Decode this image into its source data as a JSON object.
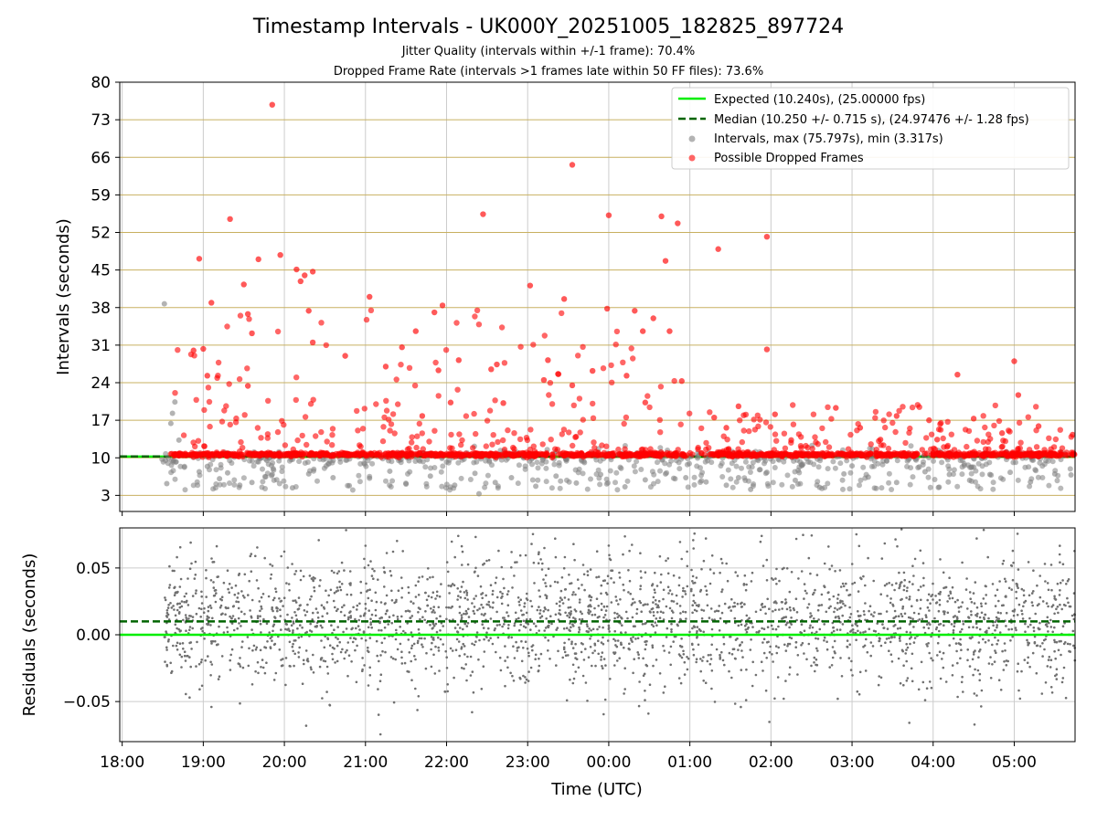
{
  "chart_data": [
    {
      "type": "scatter",
      "title": "Timestamp Intervals - UK000Y_20251005_182825_897724",
      "subtitle_1": "Jitter Quality (intervals within +/-1 frame): 70.4%",
      "subtitle_2": "Dropped Frame Rate (intervals >1 frames late within 50 FF files): 73.6%",
      "ylabel": "Intervals (seconds)",
      "ylim": [
        0,
        80
      ],
      "yticks": [
        3,
        10,
        17,
        24,
        31,
        38,
        45,
        52,
        59,
        66,
        73,
        80
      ],
      "ytick_labels": [
        "3",
        "10",
        "17",
        "24",
        "31",
        "38",
        "45",
        "52",
        "59",
        "66",
        "73",
        "80"
      ],
      "xlim_hours": [
        17.97,
        29.75
      ],
      "data_start_hour": 18.47,
      "data_end_hour": 29.75,
      "grid": true,
      "legend_position": "top-right",
      "legend": {
        "expected": "Expected (10.240s), (25.00000 fps)",
        "median": "Median (10.250 +/- 0.715 s), (24.97476 +/- 1.28 fps)",
        "intervals": "Intervals, max (75.797s), min (3.317s)",
        "dropped": "Possible Dropped Frames"
      },
      "expected_value": 10.24,
      "median_value": 10.25,
      "series": [
        {
          "name": "Intervals",
          "color": "#808080",
          "points": [
            [
              18.52,
              38.7
            ],
            [
              18.6,
              16.4
            ],
            [
              18.65,
              20.4
            ],
            [
              18.62,
              18.3
            ],
            [
              18.7,
              13.3
            ],
            [
              18.55,
              5.2
            ],
            [
              18.95,
              7.4
            ],
            [
              19.2,
              6.1
            ],
            [
              19.3,
              7.2
            ],
            [
              19.45,
              4.9
            ],
            [
              19.6,
              5.4
            ],
            [
              19.85,
              6.9
            ],
            [
              20.1,
              4.4
            ],
            [
              20.3,
              7.0
            ],
            [
              20.6,
              6.3
            ],
            [
              20.8,
              4.8
            ],
            [
              21.05,
              6.2
            ],
            [
              21.3,
              7.5
            ],
            [
              21.5,
              5.1
            ],
            [
              21.8,
              6.6
            ],
            [
              22.1,
              4.9
            ],
            [
              22.35,
              7.1
            ],
            [
              22.6,
              5.4
            ],
            [
              22.8,
              6.3
            ],
            [
              23.1,
              4.7
            ],
            [
              23.35,
              6.6
            ],
            [
              23.6,
              5.3
            ],
            [
              23.9,
              6.9
            ],
            [
              24.2,
              4.6
            ],
            [
              24.45,
              5.9
            ],
            [
              24.7,
              7.0
            ],
            [
              24.95,
              6.3
            ],
            [
              25.2,
              5.5
            ],
            [
              25.45,
              4.9
            ],
            [
              25.6,
              6.3
            ],
            [
              25.75,
              4.1
            ],
            [
              25.95,
              7.3
            ],
            [
              26.3,
              5.8
            ],
            [
              26.6,
              4.5
            ],
            [
              26.9,
              7.0
            ],
            [
              27.2,
              6.4
            ],
            [
              27.55,
              5.4
            ],
            [
              27.9,
              7.4
            ],
            [
              28.2,
              6.9
            ],
            [
              28.45,
              5.8
            ],
            [
              28.7,
              6.9
            ],
            [
              28.95,
              7.3
            ],
            [
              29.2,
              5.5
            ],
            [
              29.5,
              7.0
            ],
            [
              29.7,
              6.8
            ],
            [
              22.4,
              3.3
            ],
            [
              19.05,
              8.4
            ],
            [
              20.55,
              8.9
            ],
            [
              23.7,
              9.1
            ],
            [
              27.0,
              8.5
            ]
          ]
        },
        {
          "name": "Possible Dropped Frames",
          "color": "#ff0000",
          "points": [
            [
              19.85,
              75.8
            ],
            [
              23.55,
              64.6
            ],
            [
              22.45,
              55.4
            ],
            [
              24.0,
              55.2
            ],
            [
              24.65,
              55.0
            ],
            [
              19.33,
              54.5
            ],
            [
              24.85,
              53.7
            ],
            [
              25.95,
              51.2
            ],
            [
              25.35,
              48.9
            ],
            [
              19.95,
              47.8
            ],
            [
              18.95,
              47.1
            ],
            [
              19.68,
              47.0
            ],
            [
              24.7,
              46.7
            ],
            [
              20.15,
              45.1
            ],
            [
              20.35,
              44.7
            ],
            [
              20.25,
              44.0
            ],
            [
              20.2,
              42.9
            ],
            [
              19.5,
              42.3
            ],
            [
              23.03,
              42.1
            ],
            [
              23.45,
              39.6
            ],
            [
              19.1,
              38.9
            ],
            [
              21.05,
              40.0
            ],
            [
              21.95,
              38.4
            ],
            [
              24.32,
              37.4
            ],
            [
              23.98,
              37.8
            ],
            [
              21.85,
              37.1
            ],
            [
              20.3,
              37.4
            ],
            [
              19.55,
              36.8
            ],
            [
              24.55,
              36.0
            ],
            [
              24.75,
              33.6
            ],
            [
              24.42,
              33.6
            ],
            [
              21.62,
              33.6
            ],
            [
              21.45,
              30.6
            ],
            [
              25.95,
              30.2
            ],
            [
              20.35,
              31.5
            ],
            [
              20.75,
              29.0
            ],
            [
              21.25,
              27.0
            ],
            [
              21.9,
              26.3
            ],
            [
              22.55,
              26.5
            ],
            [
              22.62,
              27.4
            ],
            [
              23.2,
              24.5
            ],
            [
              23.38,
              25.6
            ],
            [
              23.8,
              26.2
            ],
            [
              24.22,
              25.3
            ],
            [
              24.9,
              24.3
            ],
            [
              22.15,
              28.2
            ],
            [
              23.25,
              28.2
            ],
            [
              29.0,
              28.0
            ],
            [
              29.05,
              21.7
            ],
            [
              28.3,
              25.5
            ],
            [
              18.88,
              30.0
            ],
            [
              19.0,
              30.3
            ],
            [
              19.6,
              33.2
            ],
            [
              19.05,
              25.3
            ],
            [
              19.55,
              23.4
            ],
            [
              21.7,
              17.8
            ],
            [
              22.05,
              20.3
            ],
            [
              22.7,
              20.2
            ],
            [
              23.55,
              23.5
            ],
            [
              24.45,
              20.3
            ],
            [
              25.3,
              17.5
            ],
            [
              25.6,
              19.6
            ],
            [
              26.05,
              18.1
            ],
            [
              26.8,
              19.3
            ],
            [
              27.55,
              17.8
            ],
            [
              27.95,
              17.0
            ],
            [
              28.5,
              17.3
            ],
            [
              28.85,
              14.6
            ],
            [
              29.3,
              15.9
            ],
            [
              29.72,
              14.3
            ],
            [
              26.25,
              13.3
            ],
            [
              27.1,
              15.6
            ],
            [
              27.35,
              13.4
            ],
            [
              28.05,
              13.4
            ],
            [
              25.45,
              15.6
            ]
          ]
        }
      ],
      "dense_red_band_value": 10.6
    },
    {
      "type": "scatter",
      "ylabel": "Residuals (seconds)",
      "xlabel": "Time (UTC)",
      "ylim": [
        -0.08,
        0.08
      ],
      "yticks": [
        -0.05,
        0.0,
        0.05
      ],
      "ytick_labels": [
        "−0.05",
        "0.00",
        "0.05"
      ],
      "xticks_hours": [
        18,
        19,
        20,
        21,
        22,
        23,
        24,
        25,
        26,
        27,
        28,
        29
      ],
      "xtick_labels": [
        "18:00",
        "19:00",
        "20:00",
        "21:00",
        "22:00",
        "23:00",
        "00:00",
        "01:00",
        "02:00",
        "03:00",
        "04:00",
        "05:00"
      ],
      "zero_line": 0.0,
      "median_offset": 0.01,
      "point_color": "#707070",
      "point_count": 2600,
      "residual_spread": 0.025
    }
  ],
  "colors": {
    "expected_line": "#00ee00",
    "median_line": "#006400",
    "yellow_grid": "#c8b060",
    "gray_grid": "#cccccc"
  }
}
